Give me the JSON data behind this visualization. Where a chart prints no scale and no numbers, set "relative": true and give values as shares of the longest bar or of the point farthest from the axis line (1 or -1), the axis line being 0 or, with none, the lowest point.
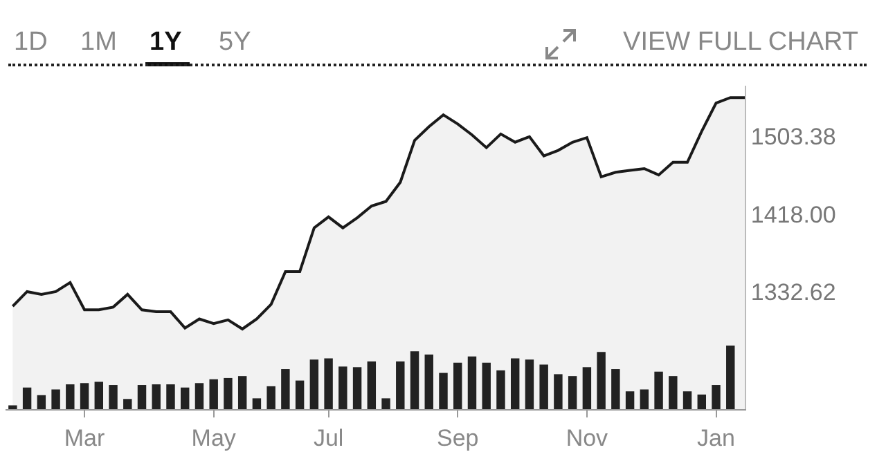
{
  "chart_data": [
    {
      "type": "other",
      "annotations": [
        "1D",
        "1M",
        "1Y",
        "5Y",
        "VIEW FULL CHART"
      ]
    },
    {
      "type": "area",
      "categories": [
        null,
        null,
        null,
        null,
        null,
        null,
        null,
        null,
        null,
        null,
        null,
        null,
        null,
        null,
        null,
        null,
        null,
        null,
        null,
        null,
        null,
        null,
        null,
        null,
        null,
        null,
        null,
        null,
        null,
        null,
        null,
        null,
        null,
        null,
        null,
        null,
        null,
        null,
        null,
        null,
        null,
        null,
        null,
        null,
        null,
        null,
        null,
        null,
        null,
        null,
        null,
        null
      ],
      "series": [
        {
          "color": "#1a1a1a",
          "values": [
            1317,
            1333,
            1330,
            1333,
            1343,
            1313,
            1313,
            1316,
            1330,
            1313,
            1311,
            1311,
            1293,
            1303,
            1298,
            1302,
            1292,
            1303,
            1319,
            1355,
            1355,
            1403,
            1415,
            1403,
            1414,
            1427,
            1432,
            1453,
            1499,
            1514,
            1527,
            1517,
            1505,
            1491,
            1506,
            1497,
            1503,
            1482,
            1488,
            1497,
            1502,
            1459,
            1464,
            1466,
            1468,
            1461,
            1475,
            1475,
            1509,
            1540,
            1546,
            1546
          ]
        }
      ],
      "ylim": [
        1204,
        1559
      ],
      "yticks": [
        1332.62,
        {
          "value": 1418,
          "label": "1418.00"
        },
        1503.38
      ],
      "tick_labels": "y",
      "grid": false
    },
    {
      "type": "bar",
      "relative": true,
      "categories": [
        null,
        null,
        null,
        null,
        null,
        "Mar",
        null,
        null,
        null,
        null,
        null,
        null,
        null,
        null,
        "May",
        null,
        null,
        null,
        null,
        null,
        null,
        null,
        "Jul",
        null,
        null,
        null,
        null,
        null,
        null,
        null,
        null,
        "Sep",
        null,
        null,
        null,
        null,
        null,
        null,
        null,
        null,
        "Nov",
        null,
        null,
        null,
        null,
        null,
        null,
        null,
        null,
        "Jan",
        null,
        null
      ],
      "values": [
        0.06,
        0.34,
        0.22,
        0.31,
        0.39,
        0.41,
        0.43,
        0.38,
        0.16,
        0.38,
        0.39,
        0.39,
        0.34,
        0.41,
        0.47,
        0.49,
        0.52,
        0.17,
        0.36,
        0.63,
        0.45,
        0.78,
        0.8,
        0.67,
        0.66,
        0.75,
        0.17,
        0.75,
        0.91,
        0.86,
        0.57,
        0.73,
        0.83,
        0.73,
        0.61,
        0.8,
        0.78,
        0.7,
        0.55,
        0.52,
        0.66,
        0.9,
        0.63,
        0.28,
        0.31,
        0.59,
        0.52,
        0.28,
        0.23,
        0.38,
        1.0,
        null
      ],
      "color": "#222222",
      "tick_labels": "x"
    }
  ]
}
